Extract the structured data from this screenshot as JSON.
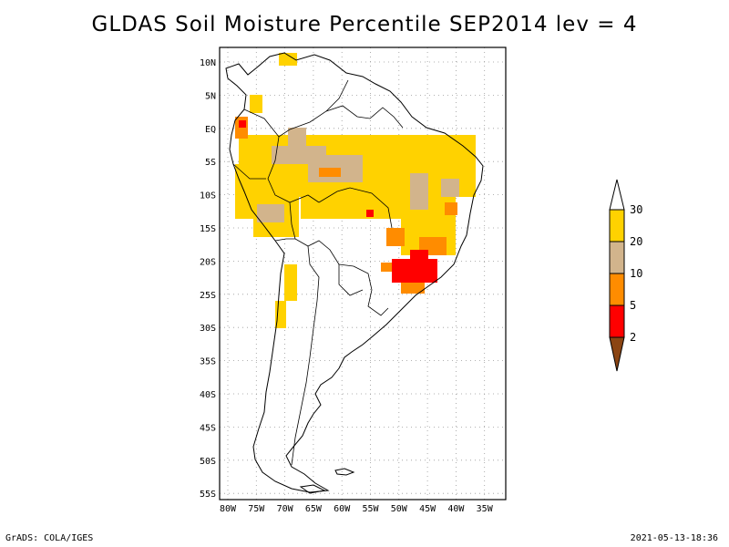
{
  "title": "GLDAS Soil Moisture Percentile SEP2014 lev = 4",
  "footer": {
    "left": "GrADS: COLA/IGES",
    "right": "2021-05-13-18:36"
  },
  "map": {
    "lat_labels": [
      "10N",
      "5N",
      "EQ",
      "5S",
      "10S",
      "15S",
      "20S",
      "25S",
      "30S",
      "35S",
      "40S",
      "45S",
      "50S",
      "55S"
    ],
    "lon_labels": [
      "80W",
      "75W",
      "70W",
      "65W",
      "60W",
      "55W",
      "50W",
      "45W",
      "40W",
      "35W"
    ]
  },
  "legend": {
    "labels": [
      "30",
      "20",
      "10",
      "5",
      "2"
    ],
    "colors": {
      "above_30": "#ffffff",
      "c20_30": "#ffd200",
      "c10_20": "#d2b48c",
      "c5_10": "#ff8c00",
      "c2_5": "#ff0000",
      "below_2": "#8b4513"
    }
  }
}
